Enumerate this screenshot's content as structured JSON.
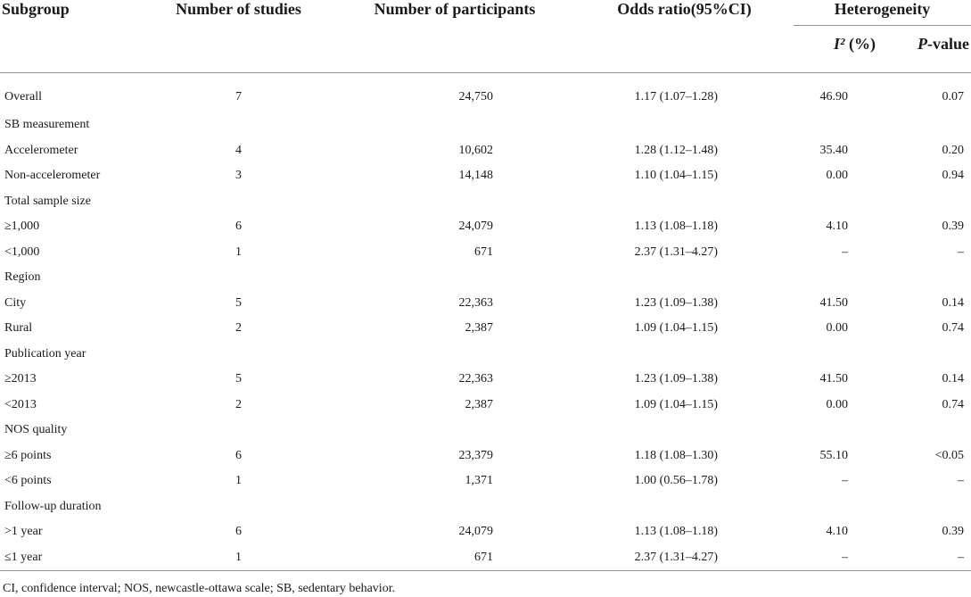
{
  "table": {
    "headers": {
      "subgroup": "Subgroup",
      "studies": "Number of studies",
      "participants": "Number of participants",
      "odds_ratio": "Odds ratio(95%CI)",
      "heterogeneity": "Heterogeneity",
      "i2_symbol": "I²",
      "i2_unit": " (%)",
      "p_symbol": "P",
      "p_suffix": "-value"
    },
    "rows": [
      {
        "subgroup": "Overall",
        "studies": "7",
        "participants": "24,750",
        "odds_ratio": "1.17 (1.07–1.28)",
        "i2": "46.90",
        "p": "0.07"
      },
      {
        "subgroup": "SB measurement",
        "studies": "",
        "participants": "",
        "odds_ratio": "",
        "i2": "",
        "p": ""
      },
      {
        "subgroup": "Accelerometer",
        "studies": "4",
        "participants": "10,602",
        "odds_ratio": "1.28 (1.12–1.48)",
        "i2": "35.40",
        "p": "0.20"
      },
      {
        "subgroup": "Non-accelerometer",
        "studies": "3",
        "participants": "14,148",
        "odds_ratio": "1.10 (1.04–1.15)",
        "i2": "0.00",
        "p": "0.94"
      },
      {
        "subgroup": "Total sample size",
        "studies": "",
        "participants": "",
        "odds_ratio": "",
        "i2": "",
        "p": ""
      },
      {
        "subgroup": "≥1,000",
        "studies": "6",
        "participants": "24,079",
        "odds_ratio": "1.13 (1.08–1.18)",
        "i2": "4.10",
        "p": "0.39"
      },
      {
        "subgroup": "<1,000",
        "studies": "1",
        "participants": "671",
        "odds_ratio": "2.37 (1.31–4.27)",
        "i2": "–",
        "p": "–"
      },
      {
        "subgroup": "Region",
        "studies": "",
        "participants": "",
        "odds_ratio": "",
        "i2": "",
        "p": ""
      },
      {
        "subgroup": "City",
        "studies": "5",
        "participants": "22,363",
        "odds_ratio": "1.23 (1.09–1.38)",
        "i2": "41.50",
        "p": "0.14"
      },
      {
        "subgroup": "Rural",
        "studies": "2",
        "participants": "2,387",
        "odds_ratio": "1.09 (1.04–1.15)",
        "i2": "0.00",
        "p": "0.74"
      },
      {
        "subgroup": "Publication year",
        "studies": "",
        "participants": "",
        "odds_ratio": "",
        "i2": "",
        "p": ""
      },
      {
        "subgroup": "≥2013",
        "studies": "5",
        "participants": "22,363",
        "odds_ratio": "1.23 (1.09–1.38)",
        "i2": "41.50",
        "p": "0.14"
      },
      {
        "subgroup": "<2013",
        "studies": "2",
        "participants": "2,387",
        "odds_ratio": "1.09 (1.04–1.15)",
        "i2": "0.00",
        "p": "0.74"
      },
      {
        "subgroup": "NOS quality",
        "studies": "",
        "participants": "",
        "odds_ratio": "",
        "i2": "",
        "p": ""
      },
      {
        "subgroup": "≥6 points",
        "studies": "6",
        "participants": "23,379",
        "odds_ratio": "1.18 (1.08–1.30)",
        "i2": "55.10",
        "p": "<0.05"
      },
      {
        "subgroup": "<6 points",
        "studies": "1",
        "participants": "1,371",
        "odds_ratio": "1.00 (0.56–1.78)",
        "i2": "–",
        "p": "–"
      },
      {
        "subgroup": "Follow-up duration",
        "studies": "",
        "participants": "",
        "odds_ratio": "",
        "i2": "",
        "p": ""
      },
      {
        "subgroup": ">1 year",
        "studies": "6",
        "participants": "24,079",
        "odds_ratio": "1.13 (1.08–1.18)",
        "i2": "4.10",
        "p": "0.39"
      },
      {
        "subgroup": "≤1 year",
        "studies": "1",
        "participants": "671",
        "odds_ratio": "2.37 (1.31–4.27)",
        "i2": "–",
        "p": "–"
      }
    ],
    "footnote": "CI, confidence interval; NOS, newcastle-ottawa scale; SB, sedentary behavior."
  }
}
